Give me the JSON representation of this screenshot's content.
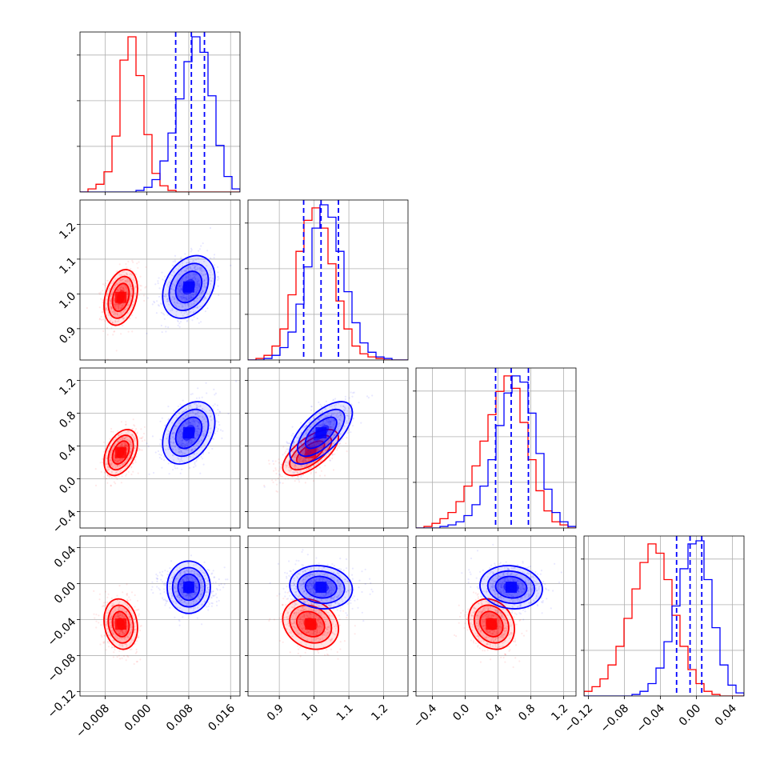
{
  "chart_data": {
    "type": "corner",
    "title": "",
    "parameters": [
      "",
      "",
      "",
      ""
    ],
    "series": [
      {
        "color": "#ff0000",
        "means": [
          -0.005,
          0.99,
          0.32,
          -0.045
        ],
        "stds": [
          0.0016,
          0.04,
          0.14,
          0.014
        ],
        "rho": {
          "0-1": 0.3,
          "0-2": 0.4,
          "1-2": 0.65,
          "3-0": -0.15,
          "3-1": -0.2,
          "3-2": -0.2
        }
      },
      {
        "color": "#0000ff",
        "means": [
          0.008,
          1.02,
          0.56,
          -0.004
        ],
        "stds": [
          0.0025,
          0.045,
          0.19,
          0.012
        ],
        "rho": {
          "0-1": 0.3,
          "0-2": 0.35,
          "1-2": 0.65,
          "3-0": 0.0,
          "3-1": -0.1,
          "3-2": -0.1
        }
      }
    ],
    "quantile_lines": {
      "color": "#0000ff",
      "style": "dashed",
      "values": [
        [
          0.0055,
          0.0085,
          0.011
        ],
        [
          0.97,
          1.02,
          1.07
        ],
        [
          0.37,
          0.56,
          0.77
        ],
        [
          -0.022,
          -0.007,
          0.006
        ]
      ]
    },
    "axis_ranges": [
      [
        -0.0128,
        0.0178
      ],
      [
        0.81,
        1.27
      ],
      [
        -0.6,
        1.35
      ],
      [
        -0.125,
        0.053
      ]
    ],
    "ticks": {
      "0": [
        "−0.008",
        "0.000",
        "0.008",
        "0.016"
      ],
      "1": [
        "0.9",
        "1.0",
        "1.1",
        "1.2"
      ],
      "2": [
        "−0.4",
        "0.0",
        "0.4",
        "0.8",
        "1.2"
      ],
      "3": [
        "−0.12",
        "−0.08",
        "−0.04",
        "0.00",
        "0.04"
      ]
    },
    "tick_values": {
      "0": [
        -0.008,
        0.0,
        0.008,
        0.016
      ],
      "1": [
        0.9,
        1.0,
        1.1,
        1.2
      ],
      "2": [
        -0.4,
        0.0,
        0.4,
        0.8,
        1.2
      ],
      "3": [
        -0.12,
        -0.08,
        -0.04,
        0.0,
        0.04
      ]
    },
    "grid": true,
    "histograms": {
      "red": [
        [
          0.0,
          0.02,
          0.05,
          0.13,
          0.36,
          0.85,
          1.0,
          0.75,
          0.37,
          0.12,
          0.04,
          0.01,
          0.0,
          0.0,
          0.0,
          0.0,
          0.0,
          0.0,
          0.0,
          0.0
        ],
        [
          0.0,
          0.01,
          0.03,
          0.09,
          0.2,
          0.42,
          0.7,
          0.9,
          0.98,
          0.85,
          0.62,
          0.38,
          0.2,
          0.09,
          0.04,
          0.02,
          0.01,
          0.0,
          0.0,
          0.0
        ],
        [
          0.0,
          0.01,
          0.03,
          0.06,
          0.1,
          0.17,
          0.27,
          0.4,
          0.56,
          0.73,
          0.88,
          0.98,
          0.9,
          0.68,
          0.44,
          0.24,
          0.11,
          0.04,
          0.02,
          0.0
        ],
        [
          0.03,
          0.06,
          0.11,
          0.2,
          0.32,
          0.5,
          0.69,
          0.86,
          0.98,
          0.92,
          0.75,
          0.52,
          0.32,
          0.17,
          0.08,
          0.03,
          0.01,
          0.0,
          0.0,
          0.0
        ]
      ],
      "blue": [
        [
          0.0,
          0.0,
          0.0,
          0.0,
          0.0,
          0.0,
          0.0,
          0.01,
          0.03,
          0.08,
          0.2,
          0.38,
          0.6,
          0.84,
          1.0,
          0.9,
          0.62,
          0.3,
          0.1,
          0.02
        ],
        [
          0.0,
          0.0,
          0.01,
          0.03,
          0.08,
          0.18,
          0.36,
          0.6,
          0.85,
          1.0,
          0.92,
          0.7,
          0.44,
          0.24,
          0.11,
          0.05,
          0.02,
          0.01,
          0.0,
          0.0
        ],
        [
          0.0,
          0.0,
          0.0,
          0.01,
          0.02,
          0.04,
          0.08,
          0.15,
          0.27,
          0.44,
          0.66,
          0.87,
          0.98,
          0.94,
          0.74,
          0.48,
          0.25,
          0.1,
          0.04,
          0.01
        ],
        [
          0.0,
          0.0,
          0.0,
          0.0,
          0.0,
          0.0,
          0.01,
          0.03,
          0.08,
          0.18,
          0.35,
          0.58,
          0.82,
          0.98,
          1.0,
          0.75,
          0.44,
          0.2,
          0.07,
          0.02
        ]
      ]
    }
  }
}
